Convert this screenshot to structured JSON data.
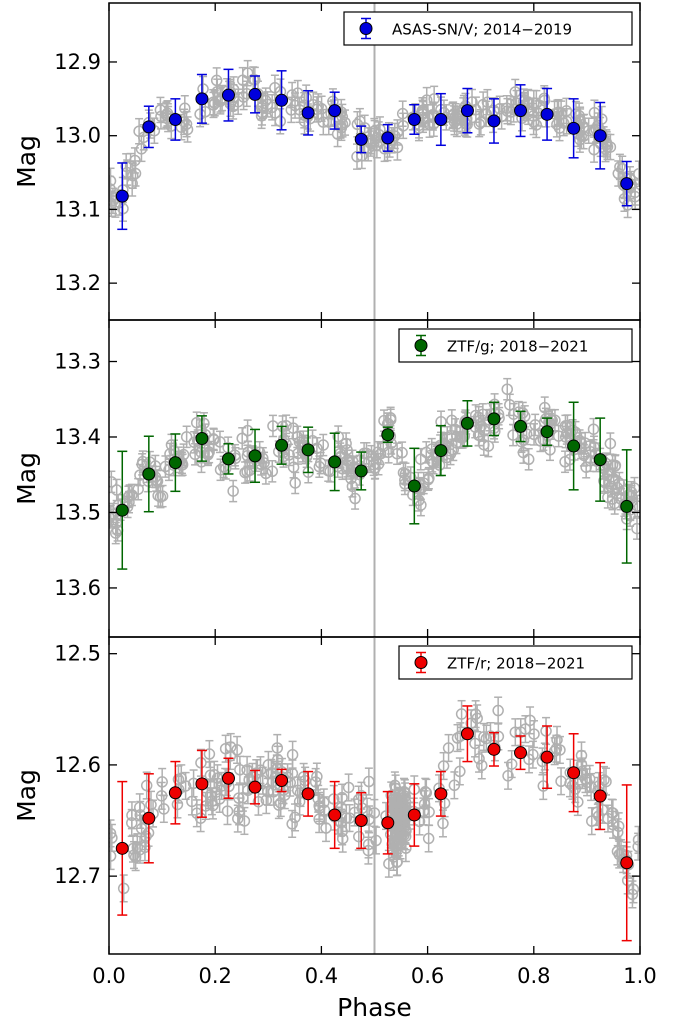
{
  "chart_data": [
    {
      "type": "scatter",
      "xlabel": "Phase",
      "ylabel": "Mag",
      "xlim": [
        0.0,
        1.0
      ],
      "ylim": [
        13.25,
        12.82
      ],
      "y_inverted": true,
      "yticks": [
        12.9,
        13.0,
        13.1,
        13.2
      ],
      "ytick_labels": [
        "12.9",
        "13.0",
        "13.1",
        "13.2"
      ],
      "vertical_line_x": 0.5,
      "legend_position": "top-right",
      "series": [
        {
          "name": "ASAS-SN/V; 2014−2019",
          "color": "#0000dd",
          "x": [
            0.025,
            0.075,
            0.125,
            0.175,
            0.225,
            0.275,
            0.325,
            0.375,
            0.425,
            0.475,
            0.525,
            0.575,
            0.625,
            0.675,
            0.725,
            0.775,
            0.825,
            0.875,
            0.925,
            0.975
          ],
          "y": [
            13.082,
            12.988,
            12.978,
            12.95,
            12.945,
            12.944,
            12.952,
            12.969,
            12.966,
            13.005,
            13.003,
            12.978,
            12.978,
            12.966,
            12.98,
            12.966,
            12.971,
            12.99,
            13.0,
            13.065
          ],
          "err": [
            0.045,
            0.028,
            0.028,
            0.033,
            0.035,
            0.025,
            0.04,
            0.03,
            0.025,
            0.018,
            0.018,
            0.02,
            0.035,
            0.03,
            0.03,
            0.035,
            0.035,
            0.04,
            0.045,
            0.03
          ]
        }
      ]
    },
    {
      "type": "scatter",
      "xlabel": "Phase",
      "ylabel": "Mag",
      "xlim": [
        0.0,
        1.0
      ],
      "ylim": [
        13.665,
        13.245
      ],
      "y_inverted": true,
      "yticks": [
        13.3,
        13.4,
        13.5,
        13.6
      ],
      "ytick_labels": [
        "13.3",
        "13.4",
        "13.5",
        "13.6"
      ],
      "vertical_line_x": 0.5,
      "legend_position": "top-right",
      "series": [
        {
          "name": "ZTF/g; 2018−2021",
          "color": "#006600",
          "x": [
            0.025,
            0.075,
            0.125,
            0.175,
            0.225,
            0.275,
            0.325,
            0.375,
            0.425,
            0.475,
            0.525,
            0.575,
            0.625,
            0.675,
            0.725,
            0.775,
            0.825,
            0.875,
            0.925,
            0.975
          ],
          "y": [
            13.497,
            13.449,
            13.434,
            13.402,
            13.429,
            13.425,
            13.411,
            13.417,
            13.433,
            13.445,
            13.397,
            13.465,
            13.418,
            13.382,
            13.376,
            13.386,
            13.393,
            13.412,
            13.43,
            13.492
          ],
          "err": [
            0.078,
            0.05,
            0.038,
            0.03,
            0.02,
            0.035,
            0.025,
            0.03,
            0.038,
            0.025,
            0.01,
            0.05,
            0.033,
            0.03,
            0.022,
            0.02,
            0.018,
            0.058,
            0.055,
            0.075
          ]
        }
      ]
    },
    {
      "type": "scatter",
      "xlabel": "Phase",
      "ylabel": "Mag",
      "xlim": [
        0.0,
        1.0
      ],
      "ylim": [
        12.77,
        12.485
      ],
      "y_inverted": true,
      "yticks": [
        12.5,
        12.6,
        12.7
      ],
      "ytick_labels": [
        "12.5",
        "12.6",
        "12.7"
      ],
      "xticks": [
        0.0,
        0.2,
        0.4,
        0.6,
        0.8,
        1.0
      ],
      "xtick_labels": [
        "0.0",
        "0.2",
        "0.4",
        "0.6",
        "0.8",
        "1.0"
      ],
      "vertical_line_x": 0.5,
      "legend_position": "top-right",
      "series": [
        {
          "name": "ZTF/r; 2018−2021",
          "color": "#ee0000",
          "x": [
            0.025,
            0.075,
            0.125,
            0.175,
            0.225,
            0.275,
            0.325,
            0.375,
            0.425,
            0.475,
            0.525,
            0.575,
            0.625,
            0.675,
            0.725,
            0.775,
            0.825,
            0.875,
            0.925,
            0.975
          ],
          "y": [
            12.675,
            12.648,
            12.625,
            12.617,
            12.612,
            12.62,
            12.614,
            12.626,
            12.645,
            12.65,
            12.652,
            12.645,
            12.626,
            12.572,
            12.586,
            12.589,
            12.593,
            12.607,
            12.628,
            12.688
          ],
          "err": [
            0.06,
            0.04,
            0.028,
            0.03,
            0.018,
            0.015,
            0.01,
            0.02,
            0.03,
            0.025,
            0.028,
            0.028,
            0.02,
            0.025,
            0.015,
            0.015,
            0.028,
            0.035,
            0.03,
            0.07
          ]
        }
      ]
    }
  ],
  "background_points_color": "#b0b0b0",
  "vertical_line_color": "#b0b0b0"
}
